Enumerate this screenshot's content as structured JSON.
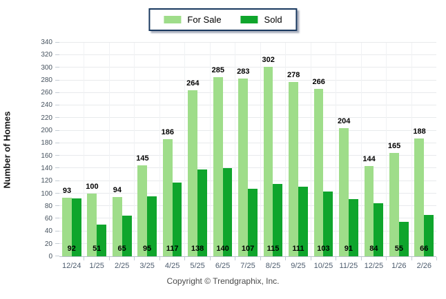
{
  "chart_data": {
    "type": "bar",
    "title": "",
    "xlabel": "",
    "ylabel": "Number of Homes",
    "ylim": [
      0,
      340
    ],
    "y_ticks": [
      0,
      20,
      40,
      60,
      80,
      100,
      120,
      140,
      160,
      180,
      200,
      220,
      240,
      260,
      280,
      300,
      320,
      340
    ],
    "grid": true,
    "legend_position": "top-center",
    "categories": [
      "12/24",
      "1/25",
      "2/25",
      "3/25",
      "4/25",
      "5/25",
      "6/25",
      "7/25",
      "8/25",
      "9/25",
      "10/25",
      "11/25",
      "12/25",
      "1/26",
      "2/26"
    ],
    "series": [
      {
        "name": "For Sale",
        "color": "#9fdd8a",
        "values": [
          93,
          100,
          94,
          145,
          186,
          264,
          285,
          283,
          302,
          278,
          266,
          204,
          144,
          165,
          188
        ]
      },
      {
        "name": "Sold",
        "color": "#0fa52c",
        "values": [
          92,
          51,
          65,
          95,
          117,
          138,
          140,
          107,
          115,
          111,
          103,
          91,
          84,
          55,
          66
        ]
      }
    ]
  },
  "colors": {
    "legend_border": "#17375e",
    "gridline": "#e8eaec",
    "axis_line": "#b6bfc9",
    "tick_text": "#46525e",
    "x_tick_text": "#4c5b6d"
  },
  "footer": {
    "copyright": "Copyright © Trendgraphix, Inc."
  }
}
